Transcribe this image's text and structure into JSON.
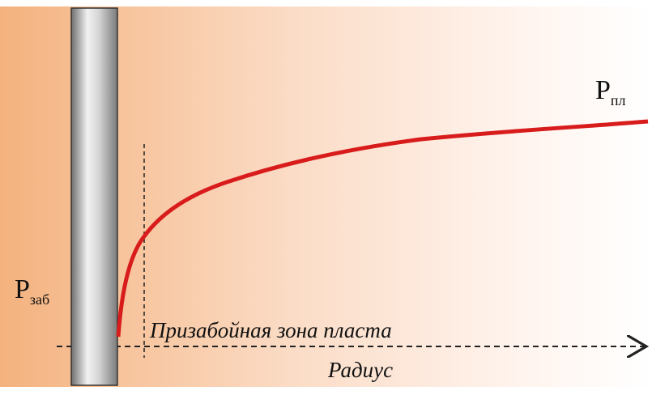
{
  "labels": {
    "p_bottom": {
      "symbol": "P",
      "subscript": "заб"
    },
    "p_reservoir": {
      "symbol": "P",
      "subscript": "пл"
    },
    "zone": "Призабойная зона пласта",
    "axis": "Радиус"
  }
}
